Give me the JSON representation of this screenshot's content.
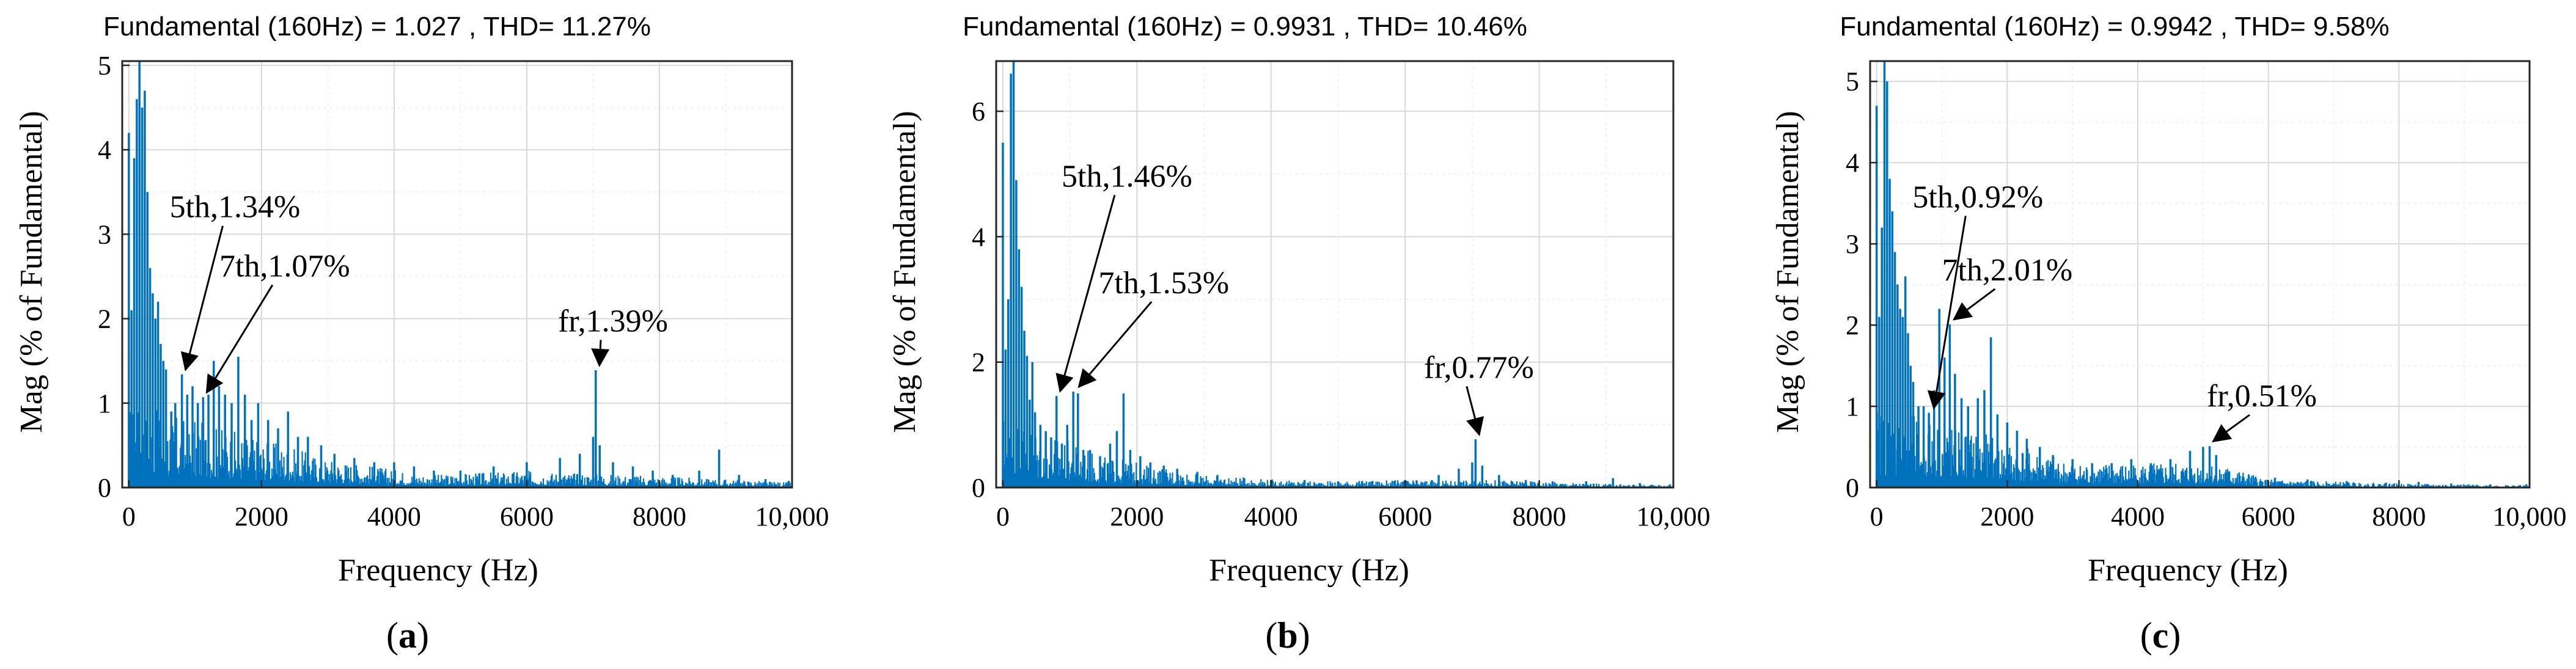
{
  "chart_data": [
    {
      "type": "bar",
      "panel_label": "a",
      "title": "Fundamental (160Hz) = 1.027 , THD= 11.27%",
      "xlabel": "Frequency (Hz)",
      "ylabel": "Mag (% of Fundamental)",
      "xlim": [
        -100,
        10000
      ],
      "ylim": [
        0,
        5.05
      ],
      "xticks": [
        0,
        2000,
        4000,
        6000,
        8000,
        10000
      ],
      "xtick_labels": [
        "0",
        "2000",
        "4000",
        "6000",
        "8000",
        "10,000"
      ],
      "yticks": [
        0,
        1,
        2,
        3,
        4,
        5
      ],
      "ytick_labels": [
        "0",
        "1",
        "2",
        "3",
        "4",
        "5"
      ],
      "grid": true,
      "color": "#0072BD",
      "spectrum": {
        "lines": [
          [
            0,
            4.2
          ],
          [
            40,
            2.1
          ],
          [
            80,
            3.9
          ],
          [
            120,
            4.6
          ],
          [
            160,
            5.05
          ],
          [
            200,
            4.5
          ],
          [
            240,
            4.7
          ],
          [
            280,
            3.5
          ],
          [
            320,
            2.6
          ],
          [
            360,
            2.3
          ],
          [
            400,
            2.0
          ],
          [
            440,
            2.2
          ],
          [
            480,
            1.7
          ],
          [
            520,
            1.5
          ],
          [
            560,
            1.4
          ],
          [
            640,
            0.9
          ],
          [
            700,
            1.0
          ],
          [
            800,
            1.34
          ],
          [
            880,
            1.1
          ],
          [
            960,
            1.2
          ],
          [
            1040,
            1.0
          ],
          [
            1120,
            1.07
          ],
          [
            1200,
            1.1
          ],
          [
            1280,
            1.5
          ],
          [
            1360,
            1.2
          ],
          [
            1450,
            1.1
          ],
          [
            1550,
            1.0
          ],
          [
            1650,
            1.55
          ],
          [
            1750,
            1.1
          ],
          [
            1850,
            0.8
          ],
          [
            1950,
            1.0
          ],
          [
            2100,
            0.8
          ],
          [
            2250,
            0.7
          ],
          [
            2400,
            0.9
          ],
          [
            2550,
            0.6
          ],
          [
            2700,
            0.6
          ],
          [
            2900,
            0.5
          ],
          [
            3100,
            0.4
          ],
          [
            3400,
            0.35
          ],
          [
            3700,
            0.3
          ],
          [
            4000,
            0.3
          ],
          [
            4300,
            0.25
          ],
          [
            4600,
            0.2
          ],
          [
            5000,
            0.2
          ],
          [
            5500,
            0.25
          ],
          [
            6000,
            0.3
          ],
          [
            6500,
            0.35
          ],
          [
            6800,
            0.4
          ],
          [
            7000,
            0.6
          ],
          [
            7040,
            1.39
          ],
          [
            7100,
            0.5
          ],
          [
            7300,
            0.3
          ],
          [
            7600,
            0.25
          ],
          [
            7900,
            0.2
          ],
          [
            8200,
            0.15
          ],
          [
            8600,
            0.2
          ],
          [
            8900,
            0.45
          ],
          [
            9200,
            0.15
          ],
          [
            9600,
            0.1
          ],
          [
            9950,
            0.08
          ]
        ],
        "noise_floor": [
          [
            0,
            1.0
          ],
          [
            1500,
            0.7
          ],
          [
            3000,
            0.35
          ],
          [
            4500,
            0.15
          ],
          [
            6000,
            0.2
          ],
          [
            7500,
            0.15
          ],
          [
            9000,
            0.1
          ],
          [
            10000,
            0.06
          ]
        ]
      },
      "annotations": [
        {
          "text": "5th,1.34%",
          "x": 800,
          "y": 1.34,
          "text_x": 1600,
          "text_y": 3.2
        },
        {
          "text": "7th,1.07%",
          "x": 1120,
          "y": 1.07,
          "text_x": 2350,
          "text_y": 2.5
        },
        {
          "text": "fr,1.39%",
          "x": 7040,
          "y": 1.39,
          "text_x": 7300,
          "text_y": 1.85
        }
      ]
    },
    {
      "type": "bar",
      "panel_label": "b",
      "title": "Fundamental (160Hz) = 0.9931 , THD= 10.46%",
      "xlabel": "Frequency (Hz)",
      "ylabel": "Mag (% of Fundamental)",
      "xlim": [
        -100,
        10000
      ],
      "ylim": [
        0,
        6.8
      ],
      "xticks": [
        0,
        2000,
        4000,
        6000,
        8000,
        10000
      ],
      "xtick_labels": [
        "0",
        "2000",
        "4000",
        "6000",
        "8000",
        "10,000"
      ],
      "yticks": [
        0,
        2,
        4,
        6
      ],
      "ytick_labels": [
        "0",
        "2",
        "4",
        "6"
      ],
      "grid": true,
      "color": "#0072BD",
      "spectrum": {
        "lines": [
          [
            0,
            5.5
          ],
          [
            40,
            2.2
          ],
          [
            80,
            3.0
          ],
          [
            120,
            6.6
          ],
          [
            160,
            6.8
          ],
          [
            200,
            4.9
          ],
          [
            240,
            3.8
          ],
          [
            280,
            3.2
          ],
          [
            320,
            2.5
          ],
          [
            360,
            2.1
          ],
          [
            400,
            1.4
          ],
          [
            440,
            2.0
          ],
          [
            480,
            1.2
          ],
          [
            560,
            1.0
          ],
          [
            640,
            0.9
          ],
          [
            720,
            0.8
          ],
          [
            800,
            1.46
          ],
          [
            880,
            0.7
          ],
          [
            960,
            1.0
          ],
          [
            1050,
            1.53
          ],
          [
            1120,
            1.5
          ],
          [
            1200,
            0.6
          ],
          [
            1300,
            0.6
          ],
          [
            1450,
            0.5
          ],
          [
            1600,
            0.7
          ],
          [
            1700,
            0.9
          ],
          [
            1800,
            1.5
          ],
          [
            1900,
            0.6
          ],
          [
            2050,
            0.5
          ],
          [
            2200,
            0.4
          ],
          [
            2400,
            0.35
          ],
          [
            2600,
            0.3
          ],
          [
            2900,
            0.25
          ],
          [
            3200,
            0.2
          ],
          [
            3600,
            0.15
          ],
          [
            4000,
            0.12
          ],
          [
            4500,
            0.12
          ],
          [
            5000,
            0.1
          ],
          [
            5500,
            0.1
          ],
          [
            6000,
            0.12
          ],
          [
            6500,
            0.2
          ],
          [
            6800,
            0.3
          ],
          [
            7000,
            0.4
          ],
          [
            7050,
            0.77
          ],
          [
            7150,
            0.35
          ],
          [
            7400,
            0.2
          ],
          [
            7800,
            0.12
          ],
          [
            8200,
            0.1
          ],
          [
            8700,
            0.1
          ],
          [
            9100,
            0.15
          ],
          [
            9500,
            0.07
          ],
          [
            9950,
            0.05
          ]
        ],
        "noise_floor": [
          [
            0,
            1.2
          ],
          [
            1500,
            0.5
          ],
          [
            3000,
            0.2
          ],
          [
            4500,
            0.1
          ],
          [
            6000,
            0.12
          ],
          [
            7500,
            0.12
          ],
          [
            9000,
            0.06
          ],
          [
            10000,
            0.04
          ]
        ]
      },
      "annotations": [
        {
          "text": "5th,1.46%",
          "x": 800,
          "y": 1.46,
          "text_x": 1850,
          "text_y": 4.8
        },
        {
          "text": "7th,1.53%",
          "x": 1080,
          "y": 1.53,
          "text_x": 2400,
          "text_y": 3.1
        },
        {
          "text": "fr,0.77%",
          "x": 7050,
          "y": 0.77,
          "text_x": 7100,
          "text_y": 1.75
        }
      ]
    },
    {
      "type": "bar",
      "panel_label": "c",
      "title": "Fundamental (160Hz) = 0.9942 , THD= 9.58%",
      "xlabel": "Frequency (Hz)",
      "ylabel": "Mag (% of Fundamental)",
      "xlim": [
        -100,
        10000
      ],
      "ylim": [
        0,
        5.25
      ],
      "xticks": [
        0,
        2000,
        4000,
        6000,
        8000,
        10000
      ],
      "xtick_labels": [
        "0",
        "2000",
        "4000",
        "6000",
        "8000",
        "10,000"
      ],
      "yticks": [
        0,
        1,
        2,
        3,
        4,
        5
      ],
      "ytick_labels": [
        "0",
        "1",
        "2",
        "3",
        "4",
        "5"
      ],
      "grid": true,
      "color": "#0072BD",
      "spectrum": {
        "lines": [
          [
            0,
            4.7
          ],
          [
            40,
            2.1
          ],
          [
            80,
            3.2
          ],
          [
            120,
            5.25
          ],
          [
            160,
            5.0
          ],
          [
            200,
            3.8
          ],
          [
            240,
            3.4
          ],
          [
            280,
            2.9
          ],
          [
            320,
            2.5
          ],
          [
            360,
            2.2
          ],
          [
            400,
            2.1
          ],
          [
            440,
            2.6
          ],
          [
            480,
            1.9
          ],
          [
            520,
            1.5
          ],
          [
            560,
            1.3
          ],
          [
            640,
            1.0
          ],
          [
            720,
            1.0
          ],
          [
            800,
            0.92
          ],
          [
            880,
            1.2
          ],
          [
            960,
            2.2
          ],
          [
            1040,
            1.6
          ],
          [
            1120,
            2.01
          ],
          [
            1200,
            1.4
          ],
          [
            1300,
            1.1
          ],
          [
            1400,
            1.0
          ],
          [
            1550,
            1.1
          ],
          [
            1650,
            1.2
          ],
          [
            1750,
            1.85
          ],
          [
            1850,
            0.9
          ],
          [
            2000,
            0.8
          ],
          [
            2150,
            0.7
          ],
          [
            2300,
            0.6
          ],
          [
            2500,
            0.5
          ],
          [
            2700,
            0.4
          ],
          [
            3000,
            0.35
          ],
          [
            3300,
            0.3
          ],
          [
            3600,
            0.3
          ],
          [
            3900,
            0.35
          ],
          [
            4200,
            0.3
          ],
          [
            4500,
            0.35
          ],
          [
            4800,
            0.45
          ],
          [
            5000,
            0.5
          ],
          [
            5100,
            0.51
          ],
          [
            5200,
            0.4
          ],
          [
            5400,
            0.2
          ],
          [
            5700,
            0.15
          ],
          [
            6100,
            0.12
          ],
          [
            6600,
            0.1
          ],
          [
            7200,
            0.08
          ],
          [
            7800,
            0.06
          ],
          [
            8300,
            0.07
          ],
          [
            8800,
            0.05
          ],
          [
            9400,
            0.04
          ],
          [
            9950,
            0.04
          ]
        ],
        "noise_floor": [
          [
            0,
            1.0
          ],
          [
            1500,
            0.7
          ],
          [
            3000,
            0.3
          ],
          [
            4500,
            0.3
          ],
          [
            5200,
            0.3
          ],
          [
            6000,
            0.1
          ],
          [
            8000,
            0.05
          ],
          [
            10000,
            0.03
          ]
        ]
      },
      "annotations": [
        {
          "text": "5th,0.92%",
          "x": 820,
          "y": 0.92,
          "text_x": 1550,
          "text_y": 3.45
        },
        {
          "text": "7th,2.01%",
          "x": 1130,
          "y": 2.01,
          "text_x": 2000,
          "text_y": 2.55
        },
        {
          "text": "fr,0.51%",
          "x": 5100,
          "y": 0.51,
          "text_x": 5900,
          "text_y": 1.0
        }
      ]
    }
  ]
}
